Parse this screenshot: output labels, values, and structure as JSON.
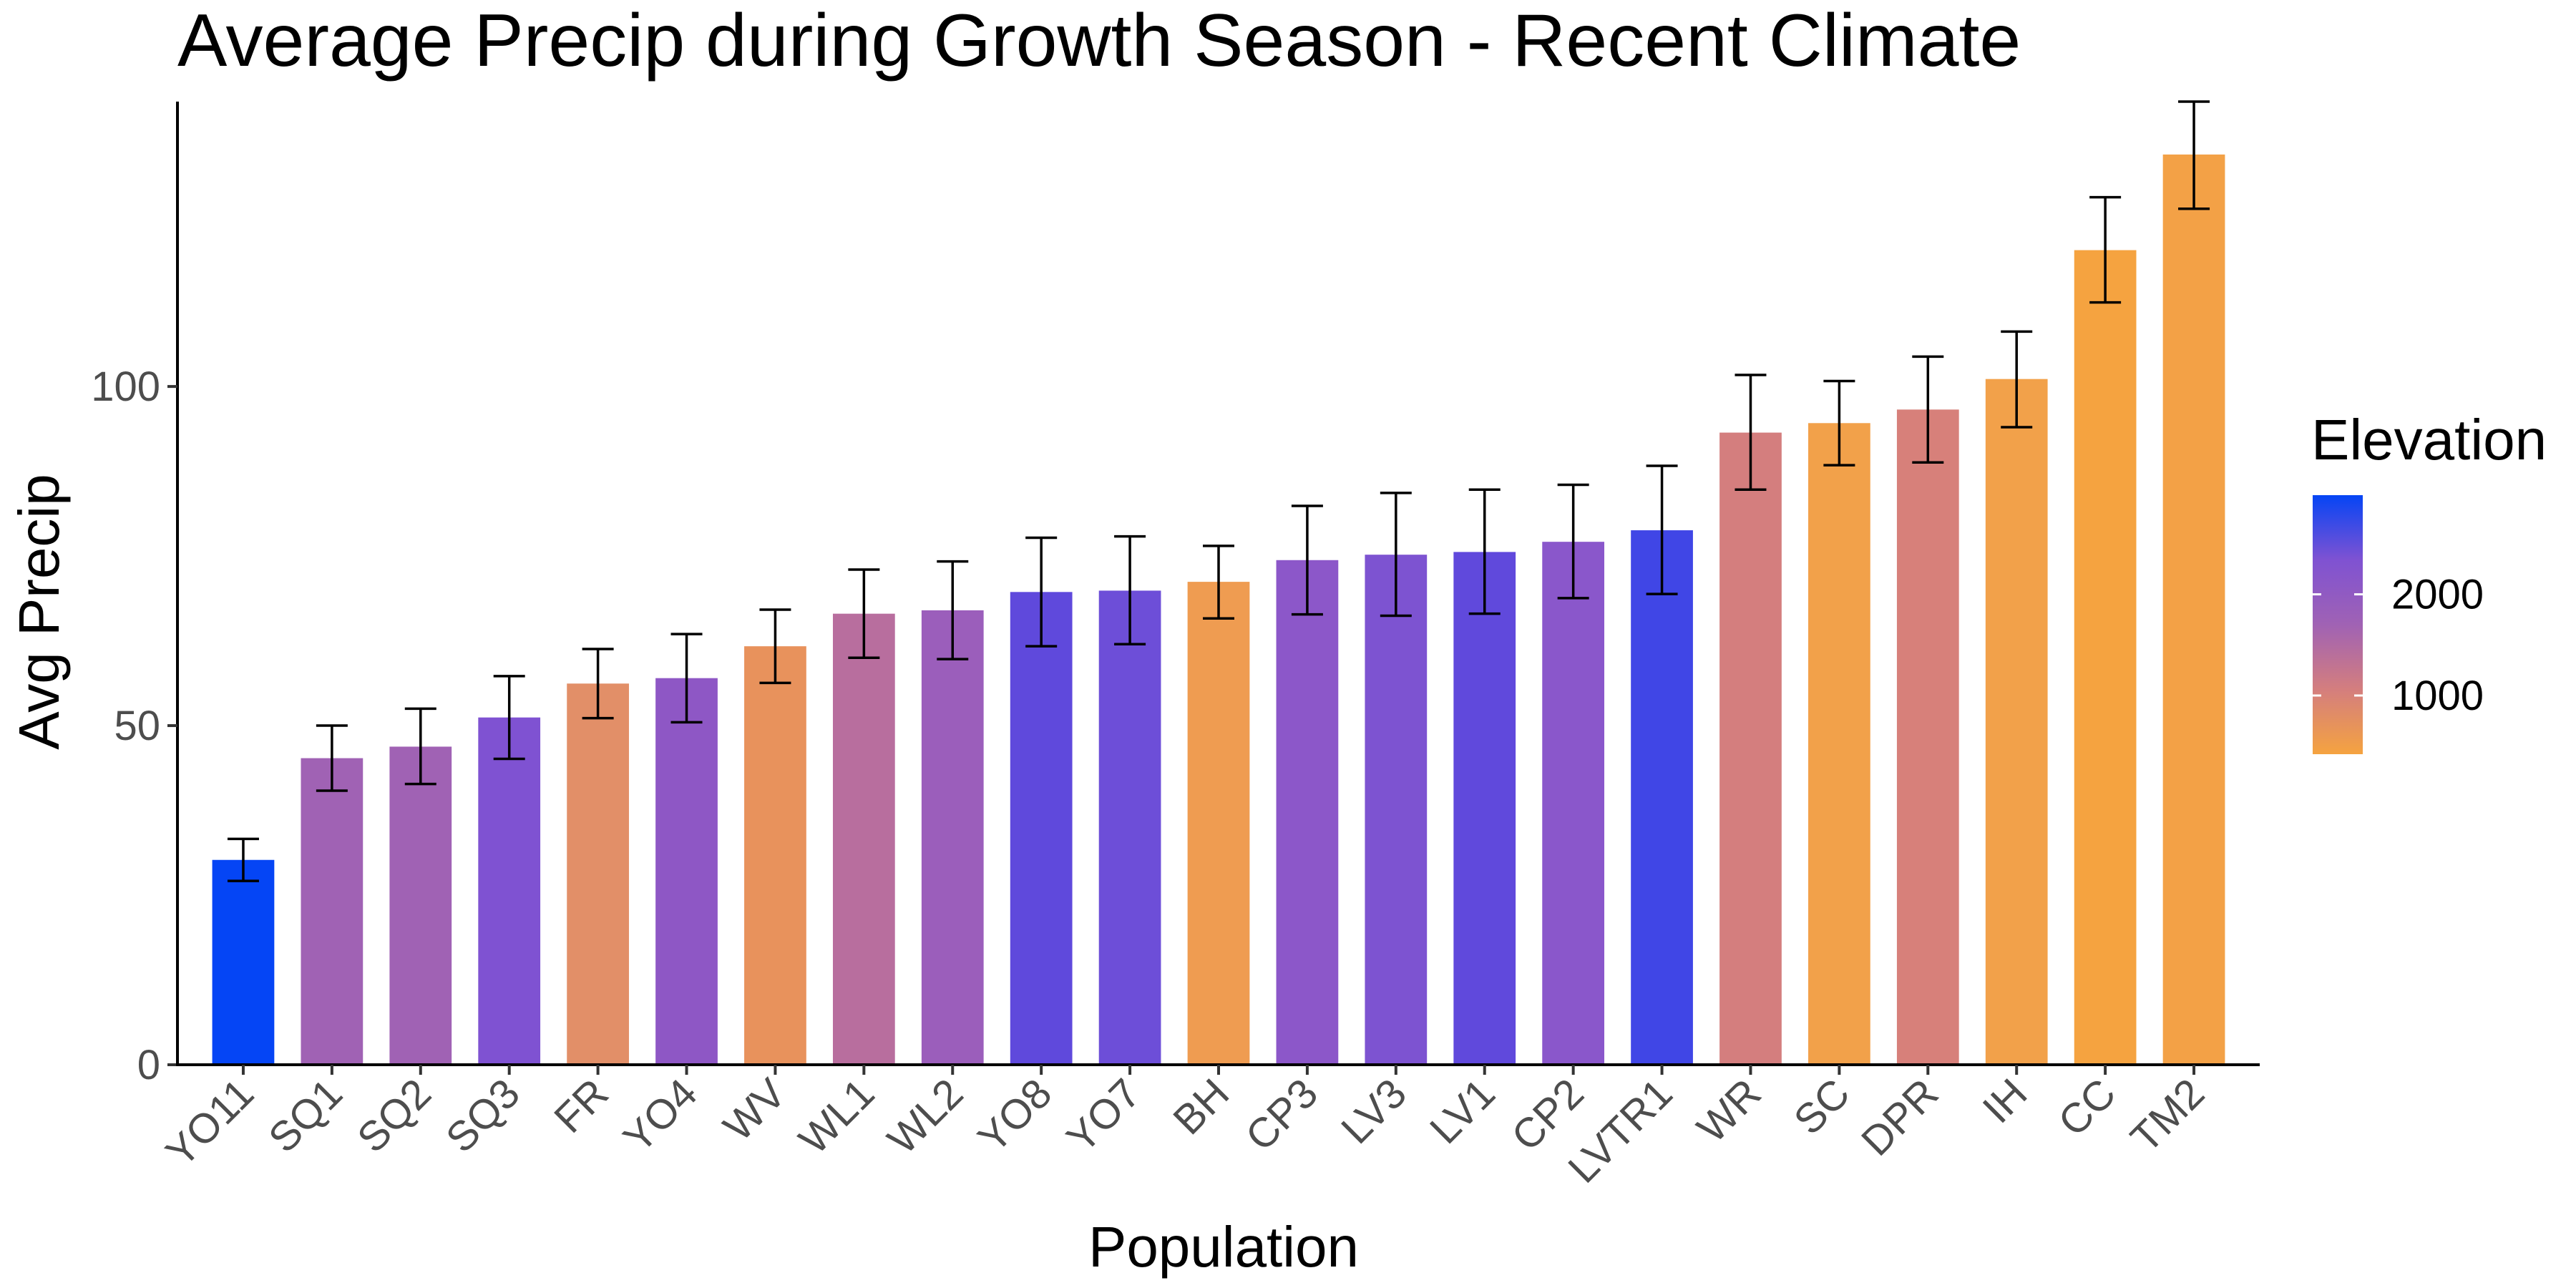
{
  "chart_data": {
    "type": "bar",
    "title": "Average Precip during Growth Season - Recent Climate",
    "xlabel": "Population",
    "ylabel": "Avg Precip",
    "ylim": [
      0,
      142
    ],
    "yticks": [
      0,
      50,
      100
    ],
    "grid": false,
    "categories": [
      "YO11",
      "SQ1",
      "SQ2",
      "SQ3",
      "FR",
      "YO4",
      "WV",
      "WL1",
      "WL2",
      "YO8",
      "YO7",
      "BH",
      "CP3",
      "LV3",
      "LV1",
      "CP2",
      "LVTR1",
      "WR",
      "SC",
      "DPR",
      "IH",
      "CC",
      "TM2"
    ],
    "values": [
      30.2,
      45.2,
      46.9,
      51.2,
      56.2,
      57.0,
      61.7,
      66.5,
      67.0,
      69.7,
      69.9,
      71.2,
      74.4,
      75.2,
      75.6,
      77.1,
      78.8,
      93.2,
      94.6,
      96.6,
      101.1,
      120.1,
      134.2
    ],
    "error_low": [
      27.1,
      40.4,
      41.4,
      45.1,
      51.1,
      50.5,
      56.3,
      60.0,
      59.8,
      61.7,
      62.0,
      65.8,
      66.4,
      66.2,
      66.5,
      68.8,
      69.4,
      84.8,
      88.4,
      88.8,
      94.0,
      112.4,
      126.2
    ],
    "error_high": [
      33.3,
      50.0,
      52.5,
      57.3,
      61.3,
      63.5,
      67.1,
      73.0,
      74.2,
      77.7,
      77.9,
      76.5,
      82.4,
      84.3,
      84.8,
      85.5,
      88.3,
      101.7,
      100.8,
      104.4,
      108.1,
      127.9,
      142.0
    ],
    "bar_colors": [
      "#0545F5",
      "#A062B4",
      "#A062B4",
      "#7F52D2",
      "#E28F68",
      "#8E57C5",
      "#E8925C",
      "#B86E9E",
      "#9B5EBB",
      "#5F49DC",
      "#6D4ED8",
      "#EF9C51",
      "#8C57C9",
      "#7D53D1",
      "#6049DC",
      "#8A57CB",
      "#4046E6",
      "#D47E7E",
      "#F2A14A",
      "#D7807A",
      "#F2A14A",
      "#F5A340",
      "#F3A146"
    ],
    "legend": {
      "title": "Elevation",
      "placement": "right",
      "ticks": [
        2000,
        1000
      ],
      "gradient_stops": [
        "#0545F5",
        "#7F52D2",
        "#A062B4",
        "#D47E7E",
        "#F5A340"
      ]
    }
  }
}
